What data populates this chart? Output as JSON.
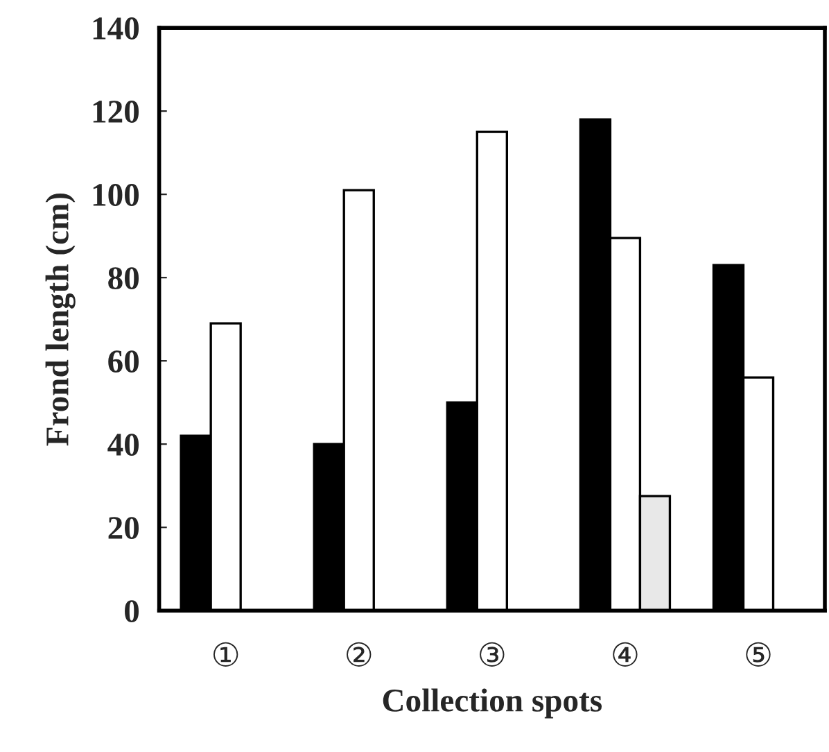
{
  "chart_data": {
    "type": "bar",
    "xlabel": "Collection spots",
    "ylabel": "Frond length (cm)",
    "categories": [
      "①",
      "②",
      "③",
      "④",
      "⑤"
    ],
    "series": [
      {
        "color": "#000000",
        "values": [
          42,
          40,
          50,
          118,
          83
        ]
      },
      {
        "color": "#ffffff",
        "values": [
          69,
          101,
          115,
          89.5,
          56
        ]
      },
      {
        "color": "#e8e8e8",
        "values": [
          null,
          null,
          null,
          27.5,
          null
        ]
      }
    ],
    "ylim": [
      0,
      140
    ],
    "yticks": [
      0,
      20,
      40,
      60,
      80,
      100,
      120,
      140
    ],
    "grid": false,
    "legend": false
  }
}
